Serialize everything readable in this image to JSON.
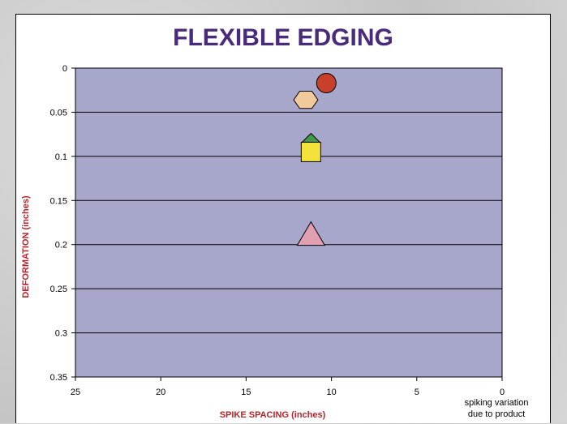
{
  "chart_data": {
    "type": "scatter",
    "title": "FLEXIBLE EDGING",
    "xlabel": "SPIKE SPACING (inches)",
    "ylabel": "DEFORMATION (inches)",
    "xlim": [
      25,
      0
    ],
    "ylim": [
      0,
      0.35
    ],
    "x_reversed": true,
    "y_inverted": true,
    "xticks": [
      "25",
      "20",
      "15",
      "10",
      "5",
      "0"
    ],
    "yticks": [
      "0",
      "0.05",
      "0.1",
      "0.15",
      "0.2",
      "0.25",
      "0.3",
      "0.35"
    ],
    "grid": "horizontal",
    "annotation": [
      "spiking variation",
      "due to product"
    ],
    "points": [
      {
        "x": 10.3,
        "y": 0.017,
        "marker": "circle",
        "color": "#c8402a"
      },
      {
        "x": 11.5,
        "y": 0.036,
        "marker": "hexagon",
        "color": "#f2c99a"
      },
      {
        "x": 11.2,
        "y": 0.085,
        "marker": "diamond",
        "color": "#3f9a4a"
      },
      {
        "x": 11.2,
        "y": 0.095,
        "marker": "square",
        "color": "#f2e23a"
      },
      {
        "x": 11.2,
        "y": 0.188,
        "marker": "triangle",
        "color": "#e0a0b0"
      }
    ],
    "colors": {
      "plot_bg": "#a7a7cc",
      "title": "#4a2a7a",
      "axis_label": "#b8242a"
    }
  }
}
